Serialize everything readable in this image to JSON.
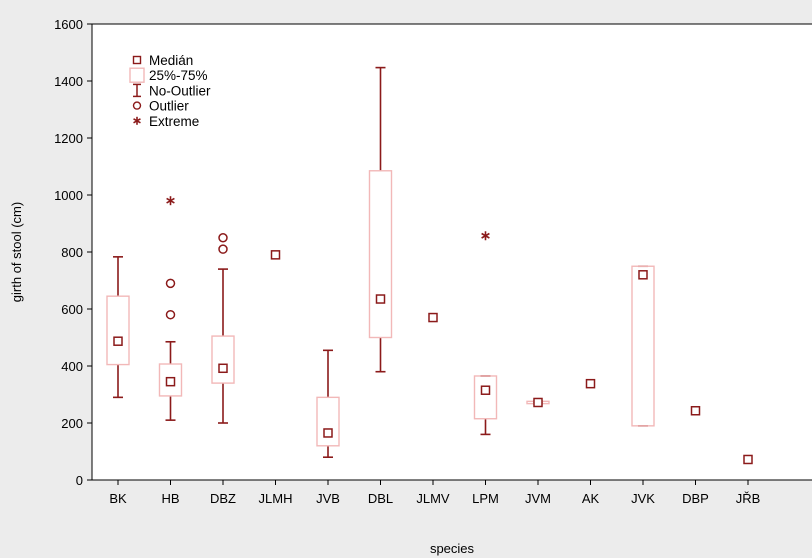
{
  "chart_data": {
    "type": "boxplot",
    "xlabel": "species",
    "ylabel": "girth of stool (cm)",
    "ylim": [
      0,
      1600
    ],
    "yticks": [
      0,
      200,
      400,
      600,
      800,
      1000,
      1200,
      1400,
      1600
    ],
    "grid": false,
    "legend_position": "top-left",
    "colors": {
      "box_stroke": "#f2b8b8",
      "marker": "#8b1a1a",
      "background": "#ececec"
    },
    "legend": [
      {
        "symbol": "median-square",
        "label": "Medián"
      },
      {
        "symbol": "box",
        "label": "25%-75%"
      },
      {
        "symbol": "whisker",
        "label": "No-Outlier"
      },
      {
        "symbol": "circle",
        "label": "Outlier"
      },
      {
        "symbol": "star",
        "label": "Extreme"
      }
    ],
    "categories": [
      "BK",
      "HB",
      "DBZ",
      "JLMH",
      "JVB",
      "DBL",
      "JLMV",
      "LPM",
      "JVM",
      "AK",
      "JVK",
      "DBP",
      "JŘB"
    ],
    "boxes": [
      {
        "category": "BK",
        "median": 487,
        "q1": 405,
        "q3": 645,
        "whisker_low": 290,
        "whisker_high": 783,
        "outliers": [],
        "extremes": []
      },
      {
        "category": "HB",
        "median": 345,
        "q1": 295,
        "q3": 407,
        "whisker_low": 210,
        "whisker_high": 485,
        "outliers": [
          580,
          690
        ],
        "extremes": [
          980
        ]
      },
      {
        "category": "DBZ",
        "median": 392,
        "q1": 340,
        "q3": 505,
        "whisker_low": 200,
        "whisker_high": 740,
        "outliers": [
          810,
          850
        ],
        "extremes": []
      },
      {
        "category": "JLMH",
        "median": 790,
        "q1": null,
        "q3": null,
        "whisker_low": null,
        "whisker_high": null,
        "outliers": [],
        "extremes": []
      },
      {
        "category": "JVB",
        "median": 165,
        "q1": 120,
        "q3": 290,
        "whisker_low": 80,
        "whisker_high": 455,
        "outliers": [],
        "extremes": []
      },
      {
        "category": "DBL",
        "median": 635,
        "q1": 500,
        "q3": 1085,
        "whisker_low": 380,
        "whisker_high": 1447,
        "outliers": [],
        "extremes": []
      },
      {
        "category": "JLMV",
        "median": 570,
        "q1": null,
        "q3": null,
        "whisker_low": null,
        "whisker_high": null,
        "outliers": [],
        "extremes": []
      },
      {
        "category": "LPM",
        "median": 315,
        "q1": 215,
        "q3": 365,
        "whisker_low": 160,
        "whisker_high": 365,
        "outliers": [],
        "extremes": [
          857
        ]
      },
      {
        "category": "JVM",
        "median": 272,
        "q1": 268,
        "q3": 276,
        "whisker_low": 268,
        "whisker_high": 276,
        "outliers": [],
        "extremes": []
      },
      {
        "category": "AK",
        "median": 338,
        "q1": null,
        "q3": null,
        "whisker_low": null,
        "whisker_high": null,
        "outliers": [],
        "extremes": []
      },
      {
        "category": "JVK",
        "median": 720,
        "q1": 190,
        "q3": 750,
        "whisker_low": 190,
        "whisker_high": 750,
        "outliers": [],
        "extremes": []
      },
      {
        "category": "DBP",
        "median": 243,
        "q1": null,
        "q3": null,
        "whisker_low": null,
        "whisker_high": null,
        "outliers": [],
        "extremes": []
      },
      {
        "category": "JŘB",
        "median": 72,
        "q1": null,
        "q3": null,
        "whisker_low": null,
        "whisker_high": null,
        "outliers": [],
        "extremes": []
      }
    ]
  }
}
